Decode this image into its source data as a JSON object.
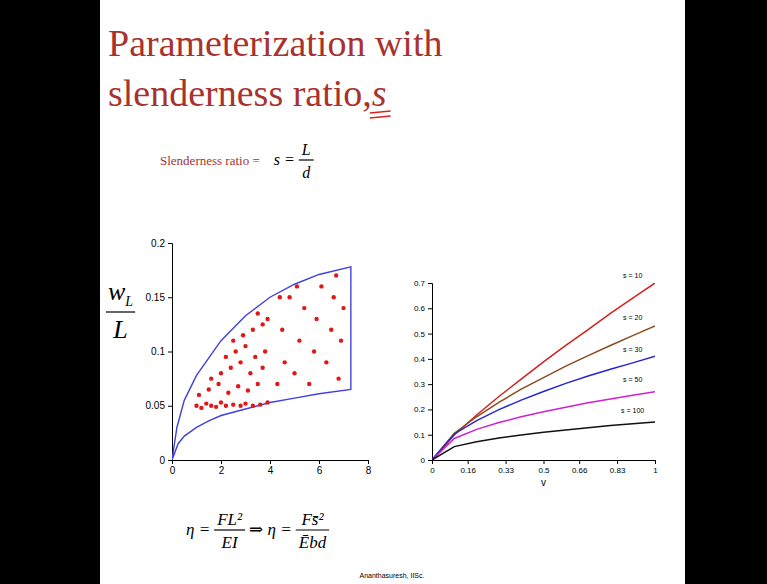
{
  "slide": {
    "title_line1": "Parameterization with",
    "title_line2": "slenderness ratio, ",
    "title_symbol": "s",
    "subtitle_label": "Slenderness ratio =",
    "subtitle_lhs": "s =",
    "subtitle_num": "L",
    "subtitle_den": "d",
    "formula": {
      "lhs": "η =",
      "num1": "FL²",
      "den1": "EI",
      "implies": "⇒ η =",
      "num2": "Fs̄²",
      "den2": "Ēbd"
    },
    "credit": "Ananthasuresh, IISc."
  },
  "chart_data": [
    {
      "type": "scatter",
      "ylabel": {
        "numerator": "w",
        "subscript": "L",
        "denominator": "L"
      },
      "xlim": [
        0,
        8
      ],
      "xticks": [
        0,
        2,
        4,
        6,
        8
      ],
      "ylim": [
        0,
        0.2
      ],
      "yticks": [
        0,
        0.05,
        0.1,
        0.15,
        0.2
      ],
      "series": [
        {
          "type": "line",
          "color": "#4040e0",
          "line_style": "solid",
          "x": [
            0,
            0.25,
            0.5,
            1,
            1.5,
            2,
            3,
            4,
            5,
            6,
            7.3,
            7.3,
            6,
            5,
            4,
            3,
            2,
            1,
            0.5,
            0.2,
            0
          ],
          "values": [
            0,
            0.015,
            0.022,
            0.03,
            0.036,
            0.041,
            0.047,
            0.053,
            0.057,
            0.061,
            0.065,
            0.178,
            0.171,
            0.162,
            0.15,
            0.133,
            0.11,
            0.078,
            0.055,
            0.03,
            0
          ]
        },
        {
          "type": "scatter",
          "color": "#e01818",
          "marker": "circle",
          "x": [
            1.0,
            1.2,
            1.4,
            1.6,
            1.8,
            2.0,
            2.2,
            2.5,
            2.8,
            3.0,
            3.3,
            3.6,
            3.9,
            1.1,
            1.5,
            1.9,
            2.3,
            2.7,
            3.1,
            3.5,
            2.0,
            2.4,
            2.8,
            3.2,
            3.7,
            1.6,
            2.2,
            2.6,
            3.0,
            3.4,
            3.8,
            2.9,
            3.3,
            3.7,
            2.5,
            3.9,
            3.5,
            4.3,
            4.6,
            4.5,
            4.8,
            5.0,
            5.2,
            5.4,
            5.6,
            5.8,
            5.9,
            6.1,
            6.3,
            6.5,
            6.6,
            6.8,
            6.9,
            7.0,
            6.7,
            4.4,
            5.1
          ],
          "values": [
            0.05,
            0.048,
            0.052,
            0.05,
            0.049,
            0.053,
            0.05,
            0.051,
            0.05,
            0.052,
            0.05,
            0.051,
            0.053,
            0.06,
            0.065,
            0.07,
            0.062,
            0.068,
            0.064,
            0.07,
            0.08,
            0.085,
            0.09,
            0.08,
            0.085,
            0.075,
            0.095,
            0.1,
            0.105,
            0.095,
            0.1,
            0.115,
            0.12,
            0.125,
            0.11,
            0.13,
            0.135,
            0.07,
            0.09,
            0.12,
            0.15,
            0.08,
            0.11,
            0.14,
            0.07,
            0.1,
            0.13,
            0.16,
            0.09,
            0.12,
            0.15,
            0.075,
            0.11,
            0.14,
            0.17,
            0.15,
            0.16
          ]
        }
      ]
    },
    {
      "type": "line",
      "xlabel": "v",
      "x": [
        0,
        0.1,
        0.2,
        0.3,
        0.4,
        0.5,
        0.6,
        0.7,
        0.8,
        0.9,
        1
      ],
      "xlim": [
        0,
        1
      ],
      "xticks": [
        0,
        0.16,
        0.33,
        0.5,
        0.66,
        0.83,
        1
      ],
      "ylim": [
        0,
        0.7
      ],
      "yticks": [
        0,
        0.1,
        0.2,
        0.3,
        0.4,
        0.5,
        0.6,
        0.7
      ],
      "series": [
        {
          "name": "s = 10",
          "color": "#d42020",
          "values": [
            0,
            0.099,
            0.178,
            0.251,
            0.32,
            0.388,
            0.453,
            0.516,
            0.58,
            0.64,
            0.7
          ]
        },
        {
          "name": "s = 20",
          "color": "#8b4a1c",
          "values": [
            0,
            0.106,
            0.171,
            0.228,
            0.28,
            0.326,
            0.371,
            0.413,
            0.453,
            0.492,
            0.53
          ]
        },
        {
          "name": "s = 30",
          "color": "#2626d0",
          "values": [
            0,
            0.103,
            0.156,
            0.199,
            0.237,
            0.271,
            0.303,
            0.332,
            0.359,
            0.384,
            0.41
          ]
        },
        {
          "name": "s = 50",
          "color": "#d020d0",
          "values": [
            0,
            0.085,
            0.121,
            0.148,
            0.171,
            0.191,
            0.209,
            0.226,
            0.241,
            0.256,
            0.27
          ]
        },
        {
          "name": "s = 100",
          "color": "#111111",
          "values": [
            0,
            0.053,
            0.072,
            0.087,
            0.099,
            0.11,
            0.119,
            0.128,
            0.136,
            0.143,
            0.15
          ]
        }
      ]
    }
  ]
}
